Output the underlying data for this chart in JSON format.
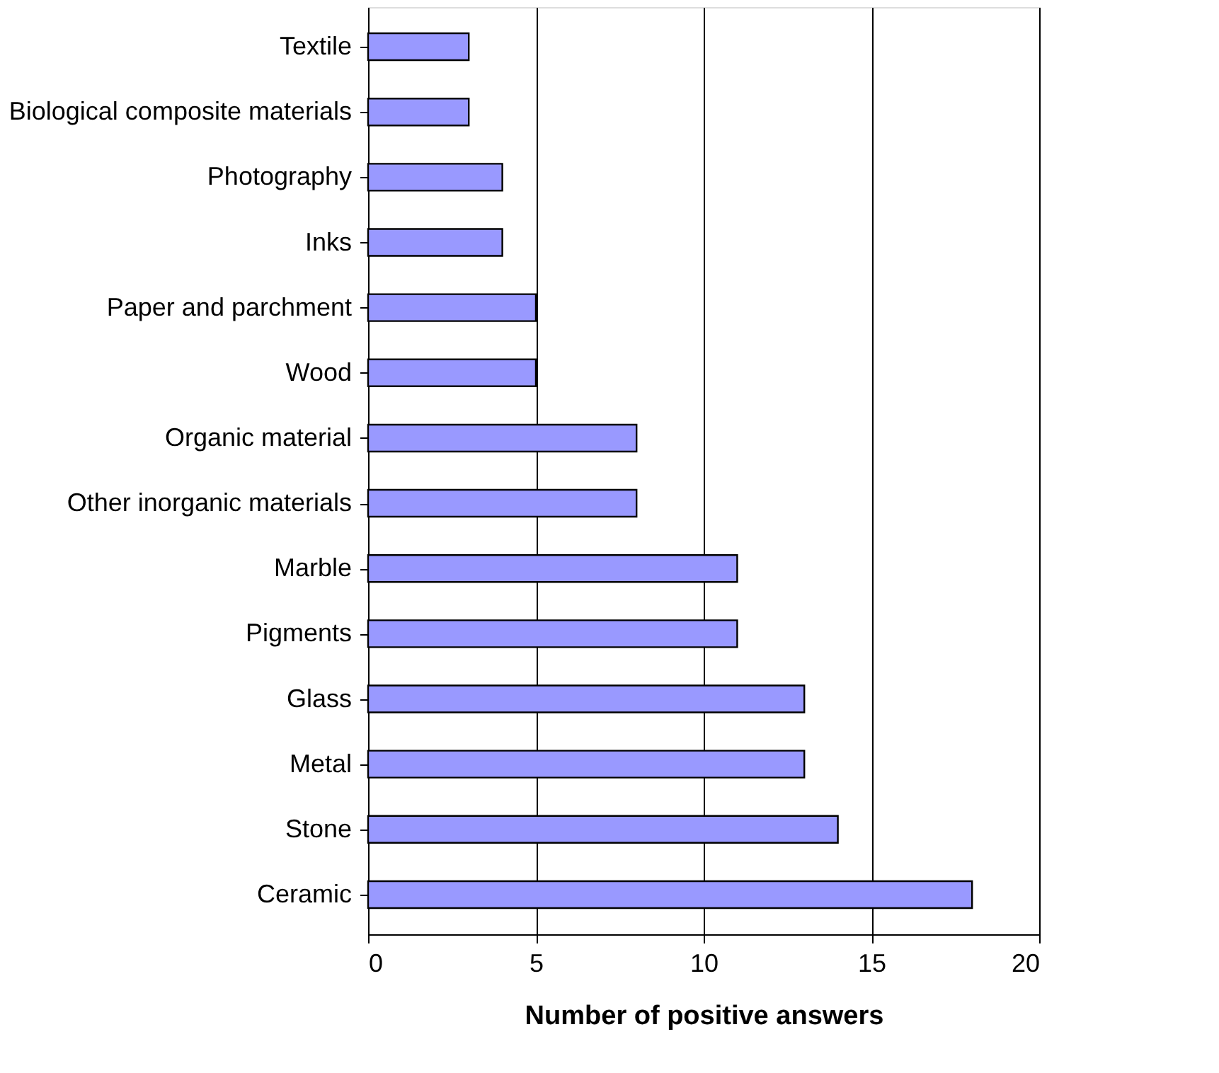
{
  "chart_data": {
    "type": "bar",
    "orientation": "horizontal",
    "xlabel": "Number of positive answers",
    "categories": [
      "Textile",
      "Biological composite materials",
      "Photography",
      "Inks",
      "Paper and parchment",
      "Wood",
      "Organic material",
      "Other inorganic materials",
      "Marble",
      "Pigments",
      "Glass",
      "Metal",
      "Stone",
      "Ceramic"
    ],
    "values": [
      3,
      3,
      4,
      4,
      5,
      5,
      8,
      8,
      11,
      11,
      13,
      13,
      14,
      18
    ],
    "color": "#9999ff",
    "xlim": [
      0,
      20
    ],
    "xticks": [
      0,
      5,
      10,
      15,
      20
    ],
    "grid": "x"
  }
}
